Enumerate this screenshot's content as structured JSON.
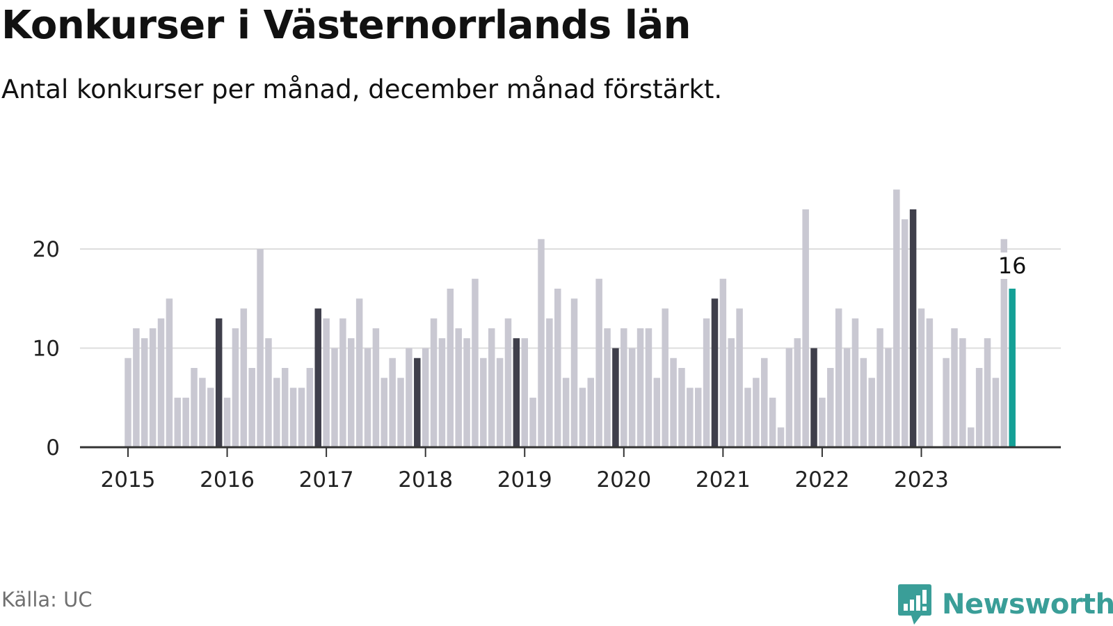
{
  "header": {
    "title": "Konkurser i Västernorrlands län",
    "subtitle": "Antal konkurser per månad, december månad förstärkt."
  },
  "footer": {
    "source": "Källa: UC",
    "brand": "Newsworthy"
  },
  "colors": {
    "bar_default": "#c9c8d2",
    "bar_december": "#3f3f4b",
    "bar_latest": "#14a096",
    "gridline": "#dddddd",
    "axis": "#333333",
    "brand": "#3a9e98"
  },
  "chart_data": {
    "type": "bar",
    "title": "Konkurser i Västernorrlands län",
    "subtitle": "Antal konkurser per månad, december månad förstärkt.",
    "start_month": "2015-01",
    "ylim": [
      0,
      26
    ],
    "yticks": [
      0,
      10,
      20
    ],
    "xticks": [
      "2015",
      "2016",
      "2017",
      "2018",
      "2019",
      "2020",
      "2021",
      "2022",
      "2023"
    ],
    "grid": true,
    "highlight": "december",
    "annotation": {
      "label": "16",
      "month": "2023-12"
    },
    "values": [
      9,
      12,
      11,
      12,
      13,
      15,
      5,
      5,
      8,
      7,
      6,
      13,
      5,
      12,
      14,
      8,
      20,
      11,
      7,
      8,
      6,
      6,
      8,
      14,
      13,
      10,
      13,
      11,
      15,
      10,
      12,
      7,
      9,
      7,
      10,
      9,
      10,
      13,
      11,
      16,
      12,
      11,
      17,
      9,
      12,
      9,
      13,
      11,
      11,
      5,
      21,
      13,
      16,
      7,
      15,
      6,
      7,
      17,
      12,
      10,
      12,
      10,
      12,
      12,
      7,
      14,
      9,
      8,
      6,
      6,
      13,
      15,
      17,
      11,
      14,
      6,
      7,
      9,
      5,
      2,
      10,
      11,
      24,
      10,
      5,
      8,
      14,
      10,
      13,
      9,
      7,
      12,
      10,
      26,
      23,
      24,
      14,
      13,
      0,
      9,
      12,
      11,
      2,
      8,
      11,
      7,
      21,
      16
    ]
  }
}
